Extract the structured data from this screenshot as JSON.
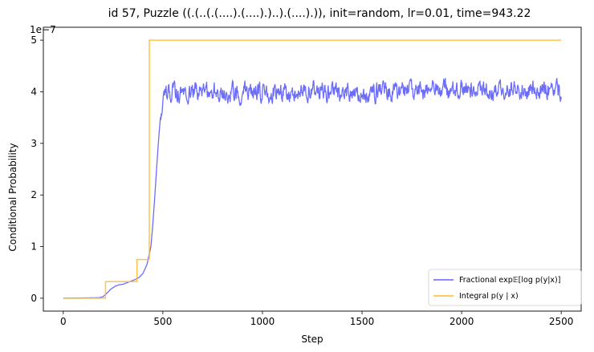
{
  "chart_data": {
    "type": "line",
    "title": "id 57, Puzzle ((.(..(.(....).(....).)..).(....).)), init=random, lr=0.01, time=943.22",
    "xlabel": "Step",
    "ylabel": "Conditional Probability",
    "y_scale_label": "1e−7",
    "xlim": [
      -100,
      2600
    ],
    "ylim": [
      -2.5,
      52.5
    ],
    "x_ticks": [
      0,
      500,
      1000,
      1500,
      2000,
      2500
    ],
    "x_tick_labels": [
      "0",
      "500",
      "1000",
      "1500",
      "2000",
      "2500"
    ],
    "y_ticks": [
      0,
      10,
      20,
      30,
      40,
      50
    ],
    "y_tick_labels": [
      "0",
      "1",
      "2",
      "3",
      "4",
      "5"
    ],
    "grid": false,
    "legend_position": "lower-right",
    "series": [
      {
        "name": "Fractional exp𝔼[log p(y|x)]",
        "color": "#6464fa",
        "x": [
          0,
          100,
          180,
          200,
          220,
          240,
          260,
          280,
          300,
          320,
          340,
          360,
          380,
          400,
          420,
          440,
          450,
          460,
          470,
          480,
          490,
          500,
          520,
          600,
          800,
          1000,
          1500,
          2000,
          2500
        ],
        "y": [
          0,
          0.05,
          0.1,
          0.3,
          1.0,
          1.8,
          2.3,
          2.6,
          2.7,
          3.0,
          3.3,
          3.6,
          4.0,
          4.8,
          6.5,
          10.0,
          14.5,
          20.0,
          26.0,
          31.5,
          36.0,
          39.0,
          40.0,
          40.0,
          40.0,
          40.0,
          40.0,
          40.5,
          40.0
        ],
        "noise_start": 490,
        "noise_amplitude": 1.3
      },
      {
        "name": "Integral p(y | x)",
        "color": "#ffb92e",
        "x": [
          0,
          212,
          212,
          370,
          370,
          432,
          432,
          2500
        ],
        "y": [
          0,
          0,
          3.2,
          3.2,
          7.5,
          7.5,
          50,
          50
        ]
      }
    ],
    "legend": [
      {
        "label": "Fractional exp𝔼[log p(y|x)]",
        "color": "#6464fa"
      },
      {
        "label": "Integral p(y | x)",
        "color": "#ffb92e"
      }
    ]
  }
}
